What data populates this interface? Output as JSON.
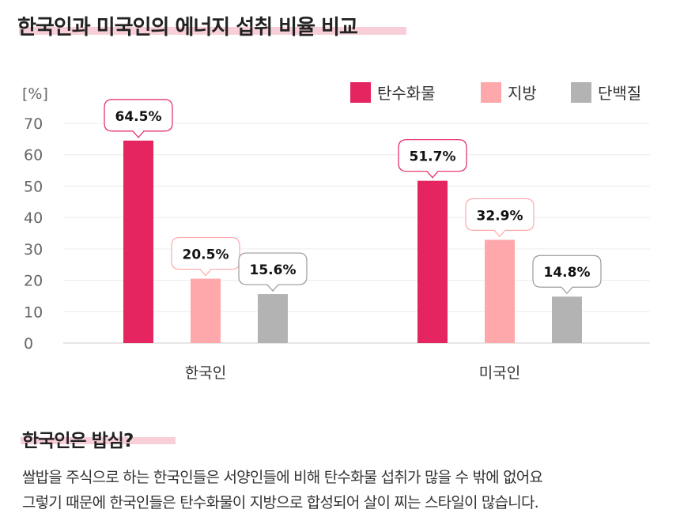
{
  "page": {
    "title": "한국인과 미국인의 에너지 섭취 비율 비교",
    "subtitle": "한국인은 밥심?",
    "body_lines": [
      "쌀밥을 주식으로 하는 한국인들은 서양인들에 비해 탄수화물 섭취가 많을 수 밖에 없어요",
      "그렇기 때문에  한국인들은 탄수화물이 지방으로 합성되어 살이 찌는 스타일이 많습니다."
    ]
  },
  "chart_data": {
    "type": "bar",
    "unit_label": "[%]",
    "ylim": [
      0,
      70
    ],
    "yticks": [
      0,
      10,
      20,
      30,
      40,
      50,
      60,
      70
    ],
    "categories": [
      "한국인",
      "미국인"
    ],
    "series": [
      {
        "name": "탄수화물",
        "color": "#e5255f",
        "values": [
          64.5,
          51.7
        ],
        "labels": [
          "64.5%",
          "51.7%"
        ]
      },
      {
        "name": "지방",
        "color": "#ffa8ab",
        "values": [
          20.5,
          32.9
        ],
        "labels": [
          "20.5%",
          "32.9%"
        ]
      },
      {
        "name": "단백질",
        "color": "#b3b3b3",
        "values": [
          15.6,
          14.8
        ],
        "labels": [
          "15.6%",
          "14.8%"
        ]
      }
    ],
    "grid": true,
    "legend_position": "top-right",
    "label_style": "callout"
  }
}
